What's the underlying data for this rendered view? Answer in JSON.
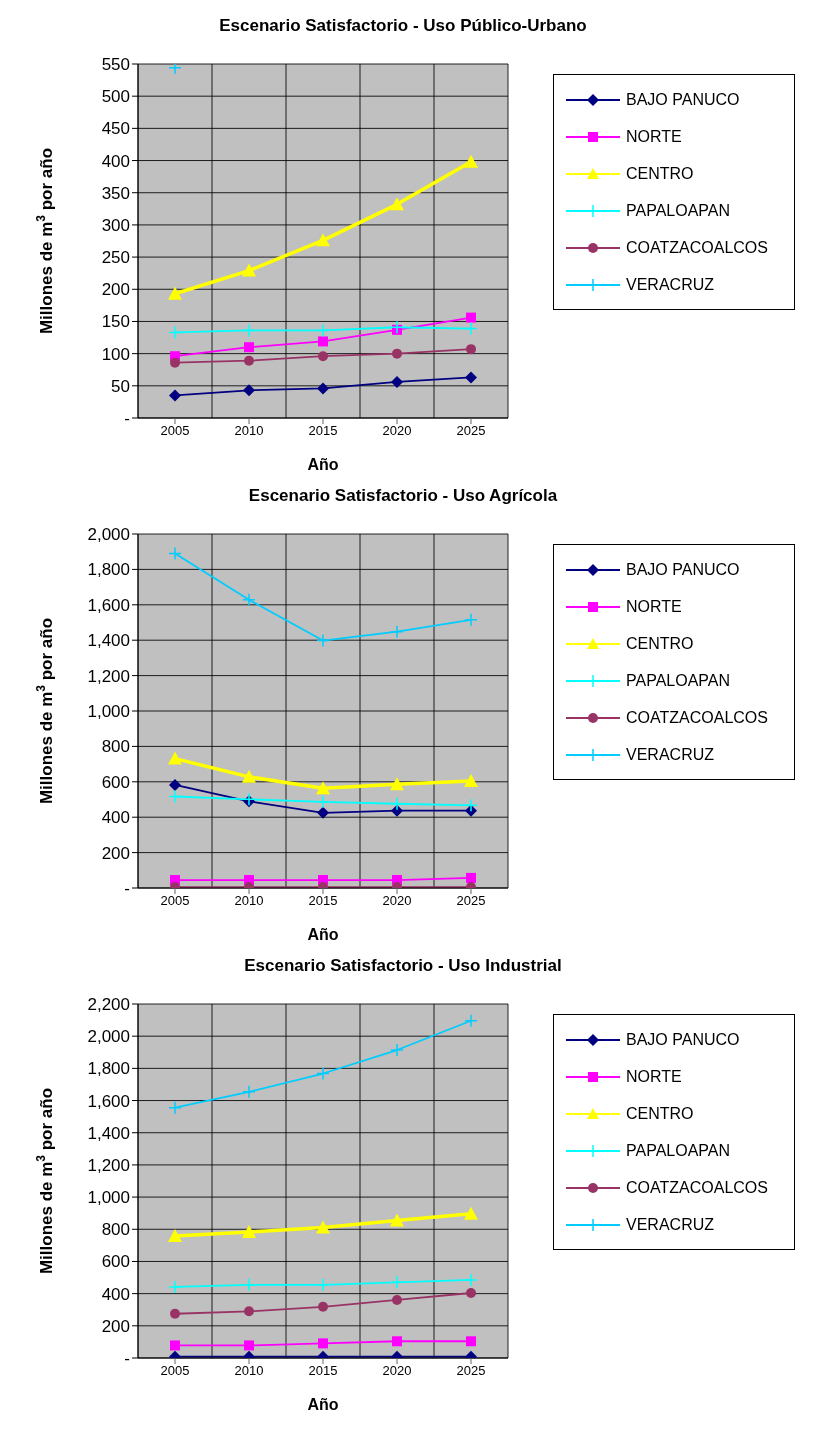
{
  "chart_data": [
    {
      "type": "line",
      "title": "Escenario Satisfactorio - Uso Público-Urbano",
      "xlabel": "Año",
      "ylabel": "Millones de m$^{3}$ por año",
      "categories": [
        "2005",
        "2010",
        "2015",
        "2020",
        "2025"
      ],
      "ylim": [
        0,
        550
      ],
      "yticks": [
        {
          "value": 0,
          "label": "-"
        },
        50,
        100,
        150,
        200,
        250,
        300,
        350,
        400,
        450,
        500,
        550
      ],
      "grid": true,
      "legend": "right",
      "series": [
        {
          "name": "BAJO PANUCO",
          "color": "#000080",
          "marker": "diamond",
          "values": [
            35,
            43,
            46,
            56,
            63
          ]
        },
        {
          "name": "NORTE",
          "color": "#ff00ff",
          "marker": "square",
          "values": [
            96,
            110,
            119,
            137,
            156
          ]
        },
        {
          "name": "CENTRO",
          "color": "#ffff00",
          "marker": "triangle",
          "values": [
            193,
            229,
            276,
            332,
            398
          ]
        },
        {
          "name": "PAPALOAPAN",
          "color": "#00ffff",
          "marker": "cross",
          "values": [
            133,
            136,
            136,
            141,
            139
          ]
        },
        {
          "name": "COATZACOALCOS",
          "color": "#993366",
          "marker": "circle",
          "values": [
            86,
            89,
            96,
            100,
            107
          ]
        },
        {
          "name": "VERACRUZ",
          "color": "#00ccff",
          "marker": "cross",
          "values": [
            544,
            null,
            null,
            null,
            null
          ]
        }
      ]
    },
    {
      "type": "line",
      "title": "Escenario Satisfactorio - Uso Agrícola",
      "xlabel": "Año",
      "ylabel": "Millones de m$^{3}$ por año",
      "categories": [
        "2005",
        "2010",
        "2015",
        "2020",
        "2025"
      ],
      "ylim": [
        0,
        2000
      ],
      "yticks": [
        {
          "value": 0,
          "label": "-"
        },
        200,
        400,
        600,
        800,
        {
          "value": 1000,
          "label": "1,000"
        },
        {
          "value": 1200,
          "label": "1,200"
        },
        {
          "value": 1400,
          "label": "1,400"
        },
        {
          "value": 1600,
          "label": "1,600"
        },
        {
          "value": 1800,
          "label": "1,800"
        },
        {
          "value": 2000,
          "label": "2,000"
        }
      ],
      "grid": true,
      "legend": "right",
      "series": [
        {
          "name": "BAJO PANUCO",
          "color": "#000080",
          "marker": "diamond",
          "values": [
            582,
            490,
            425,
            437,
            437
          ]
        },
        {
          "name": "NORTE",
          "color": "#ff00ff",
          "marker": "square",
          "values": [
            45,
            45,
            45,
            45,
            57
          ]
        },
        {
          "name": "CENTRO",
          "color": "#ffff00",
          "marker": "triangle",
          "values": [
            731,
            628,
            563,
            586,
            605
          ]
        },
        {
          "name": "PAPALOAPAN",
          "color": "#00ffff",
          "marker": "cross",
          "values": [
            517,
            501,
            487,
            476,
            467
          ]
        },
        {
          "name": "COATZACOALCOS",
          "color": "#993366",
          "marker": "circle",
          "values": [
            5,
            5,
            5,
            5,
            5
          ]
        },
        {
          "name": "VERACRUZ",
          "color": "#00ccff",
          "marker": "cross",
          "values": [
            1890,
            1628,
            1398,
            1448,
            1515
          ]
        }
      ]
    },
    {
      "type": "line",
      "title": "Escenario Satisfactorio - Uso Industrial",
      "xlabel": "Año",
      "ylabel": "Millones de m$^{3}$ por año",
      "categories": [
        "2005",
        "2010",
        "2015",
        "2020",
        "2025"
      ],
      "ylim": [
        0,
        2200
      ],
      "yticks": [
        {
          "value": 0,
          "label": "-"
        },
        200,
        400,
        600,
        800,
        {
          "value": 1000,
          "label": "1,000"
        },
        {
          "value": 1200,
          "label": "1,200"
        },
        {
          "value": 1400,
          "label": "1,400"
        },
        {
          "value": 1600,
          "label": "1,600"
        },
        {
          "value": 1800,
          "label": "1,800"
        },
        {
          "value": 2000,
          "label": "2,000"
        },
        {
          "value": 2200,
          "label": "2,200"
        }
      ],
      "grid": true,
      "legend": "right",
      "series": [
        {
          "name": "BAJO PANUCO",
          "color": "#000080",
          "marker": "diamond",
          "values": [
            8,
            8,
            8,
            8,
            8
          ]
        },
        {
          "name": "NORTE",
          "color": "#ff00ff",
          "marker": "square",
          "values": [
            78,
            78,
            91,
            104,
            104
          ]
        },
        {
          "name": "CENTRO",
          "color": "#ffff00",
          "marker": "triangle",
          "values": [
            758,
            783,
            811,
            854,
            896
          ]
        },
        {
          "name": "PAPALOAPAN",
          "color": "#00ffff",
          "marker": "cross",
          "values": [
            442,
            455,
            455,
            470,
            485
          ]
        },
        {
          "name": "COATZACOALCOS",
          "color": "#993366",
          "marker": "circle",
          "values": [
            275,
            290,
            318,
            361,
            404
          ]
        },
        {
          "name": "VERACRUZ",
          "color": "#00ccff",
          "marker": "cross",
          "values": [
            1556,
            1654,
            1768,
            1914,
            2096
          ]
        }
      ]
    }
  ]
}
